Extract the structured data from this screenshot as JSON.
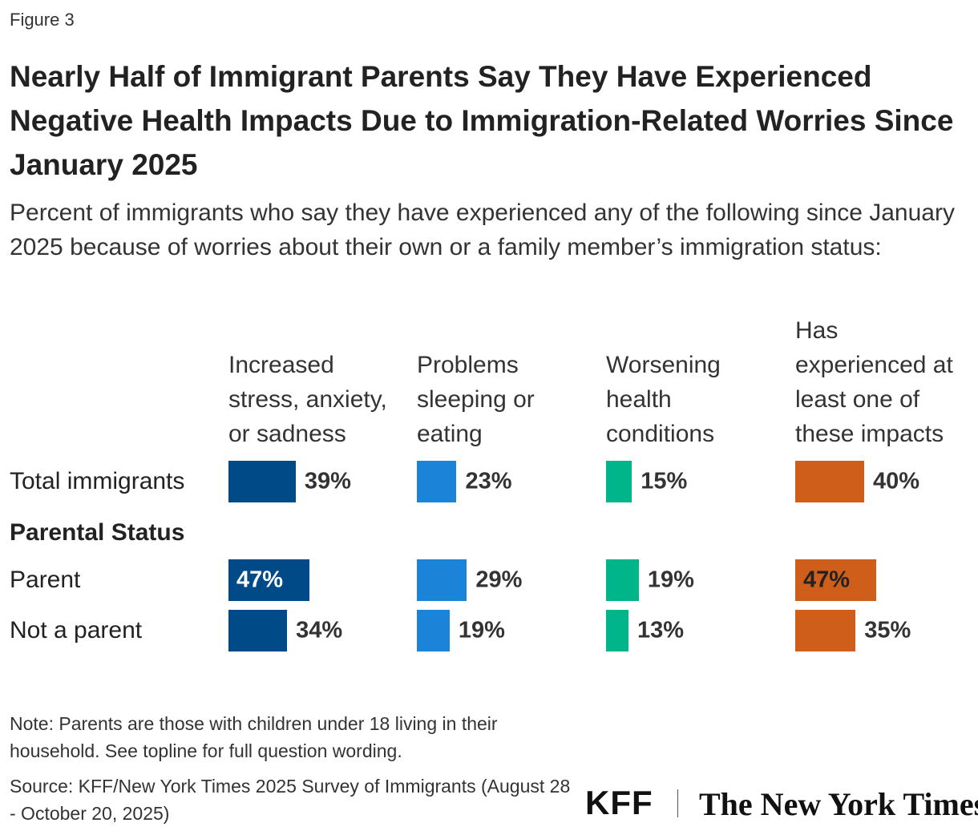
{
  "chart_data": {
    "type": "bar",
    "figure_label": "Figure 3",
    "title": "Nearly Half of Immigrant Parents Say They Have Experienced Negative Health Impacts Due to Immigration-Related Worries Since January 2025",
    "subtitle": "Percent of immigrants who say they have experienced any of the following since January 2025 because of worries about their own or a family member’s immigration status:",
    "categories": [
      "Total immigrants",
      "Parental Status",
      "Parent",
      "Not a parent"
    ],
    "series": [
      {
        "name": "Increased stress, anxiety, or sadness",
        "color": "#004a87",
        "values": [
          39,
          null,
          47,
          34
        ],
        "value_labels": [
          "39%",
          null,
          "47%",
          "34%"
        ]
      },
      {
        "name": "Problems sleeping or eating",
        "color": "#1b84d9",
        "values": [
          23,
          null,
          29,
          19
        ],
        "value_labels": [
          "23%",
          null,
          "29%",
          "19%"
        ]
      },
      {
        "name": "Worsening health conditions",
        "color": "#00b58a",
        "values": [
          15,
          null,
          19,
          13
        ],
        "value_labels": [
          "15%",
          null,
          "19%",
          "13%"
        ]
      },
      {
        "name": "Has experienced at least one of these impacts",
        "color": "#cf5e1b",
        "values": [
          40,
          null,
          47,
          35
        ],
        "value_labels": [
          "40%",
          null,
          "47%",
          "35%"
        ]
      }
    ],
    "xlim": [
      0,
      100
    ],
    "note": "Note: Parents are those with children under 18 living in their household. See topline for full question wording.",
    "source": "Source: KFF/New York Times 2025 Survey of Immigrants (August 28 - October 20, 2025)",
    "logos": [
      "KFF",
      "The New York Times"
    ]
  }
}
